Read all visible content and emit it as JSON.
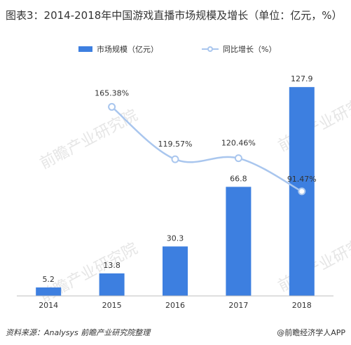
{
  "title": "图表3：2014-2018年中国游戏直播市场规模及增长（单位：亿元，%）",
  "source": "资料来源：Analysys 前瞻产业研究院整理",
  "brand": "@前瞻经济学人APP",
  "watermark": "前瞻产业研究院",
  "colors": {
    "bar": "#3d7fe0",
    "line": "#a9c6ee",
    "text": "#333333",
    "axis": "#bfbfbf"
  },
  "chart_data": {
    "type": "bar",
    "categories": [
      "2014",
      "2015",
      "2016",
      "2017",
      "2018"
    ],
    "series": [
      {
        "name": "市场规模（亿元）",
        "type": "bar",
        "axis": "left",
        "values": [
          5.2,
          13.8,
          30.3,
          66.8,
          127.9
        ]
      },
      {
        "name": "同比增长（%）",
        "type": "line",
        "axis": "right",
        "values": [
          null,
          165.38,
          119.57,
          120.46,
          91.47
        ],
        "labels": [
          "",
          "165.38%",
          "119.57%",
          "120.46%",
          "91.47%"
        ]
      }
    ],
    "ylim_left": [
      0,
      140
    ],
    "ylim_right": [
      0,
      200
    ],
    "legend": "top",
    "grid": false
  }
}
